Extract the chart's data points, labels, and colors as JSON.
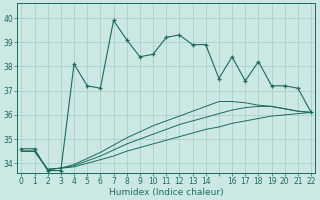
{
  "title": "",
  "xlabel": "Humidex (Indice chaleur)",
  "xlim": [
    -0.3,
    22.3
  ],
  "ylim": [
    33.6,
    40.6
  ],
  "yticks": [
    34,
    35,
    36,
    37,
    38,
    39,
    40
  ],
  "xtick_labels": [
    "0",
    "1",
    "2",
    "3",
    "4",
    "5",
    "6",
    "7",
    "8",
    "9",
    "10",
    "11",
    "12",
    "13",
    "14",
    "",
    "16",
    "17",
    "18",
    "19",
    "20",
    "21",
    "22"
  ],
  "background_color": "#cce8e4",
  "grid_color": "#aacfca",
  "line_color": "#1a6b5e",
  "main_y": [
    34.6,
    34.6,
    33.7,
    33.7,
    38.1,
    37.2,
    37.1,
    39.9,
    39.1,
    38.4,
    38.5,
    39.2,
    39.3,
    38.9,
    38.9,
    37.5,
    38.4,
    37.4,
    38.2,
    37.2,
    37.2,
    37.1,
    36.1
  ],
  "diag1_y": [
    34.5,
    34.5,
    33.75,
    33.8,
    33.85,
    34.0,
    34.15,
    34.3,
    34.5,
    34.65,
    34.8,
    34.95,
    35.1,
    35.25,
    35.4,
    35.5,
    35.65,
    35.75,
    35.85,
    35.95,
    36.0,
    36.05,
    36.1
  ],
  "diag2_y": [
    34.5,
    34.5,
    33.75,
    33.8,
    33.9,
    34.1,
    34.3,
    34.55,
    34.8,
    35.0,
    35.2,
    35.4,
    35.6,
    35.75,
    35.9,
    36.05,
    36.2,
    36.3,
    36.35,
    36.35,
    36.25,
    36.15,
    36.1
  ],
  "diag3_y": [
    34.5,
    34.5,
    33.75,
    33.8,
    33.95,
    34.2,
    34.45,
    34.75,
    35.05,
    35.3,
    35.55,
    35.75,
    35.95,
    36.15,
    36.35,
    36.55,
    36.55,
    36.5,
    36.4,
    36.35,
    36.25,
    36.15,
    36.1
  ],
  "x": [
    0,
    1,
    2,
    3,
    4,
    5,
    6,
    7,
    8,
    9,
    10,
    11,
    12,
    13,
    14,
    15,
    16,
    17,
    18,
    19,
    20,
    21,
    22
  ]
}
